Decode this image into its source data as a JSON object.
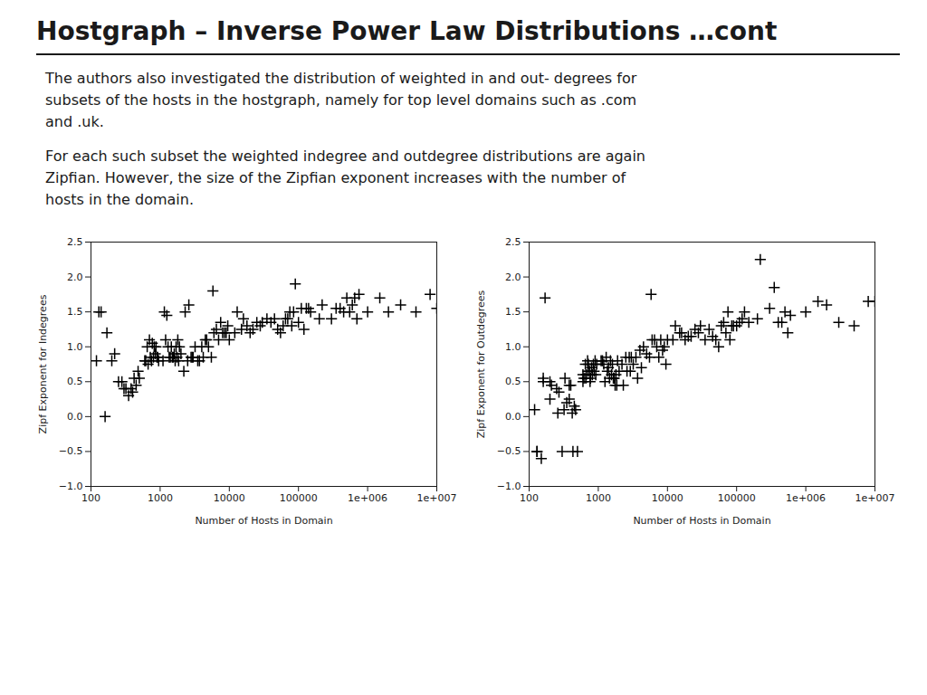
{
  "title": "Hostgraph – Inverse Power Law Distributions …cont",
  "annotations": [
    "The authors also investigated the distribution of weighted in and out- degrees for\nsubsets of the hosts in the hostgraph, namely for top level domains such as .com\nand .uk.",
    "For each such subset the weighted indegree and outdegree distributions are again\nZipfian. However, the size of the Zipfian exponent increases with the number of\nhosts in the domain."
  ],
  "chart_data": [
    {
      "type": "scatter",
      "xlabel": "Number of Hosts in Domain",
      "ylabel": "Zipf Exponent for Indegrees",
      "log": "x",
      "xlim": [
        100,
        10000000
      ],
      "ylim": [
        -1,
        2.5
      ],
      "xticks": [
        100,
        1000,
        10000,
        100000,
        {
          "value": 1000000,
          "label": "1e+006"
        },
        {
          "value": 10000000,
          "label": "1e+007"
        }
      ],
      "yticks": [
        {
          "value": -1,
          "label": "−1.0"
        },
        {
          "value": -0.5,
          "label": "−0.5"
        },
        {
          "value": 0,
          "label": "0.0"
        },
        0.5,
        {
          "value": 1,
          "label": "1.0"
        },
        1.5,
        {
          "value": 2,
          "label": "2.0"
        },
        2.5
      ],
      "grid": false,
      "marker": "plus",
      "color": "black",
      "x": [
        120,
        140,
        160,
        200,
        250,
        300,
        350,
        400,
        450,
        500,
        130,
        170,
        220,
        280,
        320,
        380,
        420,
        480,
        600,
        650,
        700,
        750,
        800,
        850,
        900,
        950,
        620,
        670,
        720,
        770,
        820,
        870,
        920,
        1100,
        1200,
        1300,
        1400,
        1500,
        1600,
        1700,
        1800,
        1900,
        2000,
        1150,
        1250,
        1350,
        1450,
        1550,
        1650,
        1750,
        1850,
        2200,
        2500,
        2800,
        3000,
        3500,
        4000,
        4500,
        5000,
        2300,
        2600,
        2900,
        3200,
        3700,
        4200,
        4700,
        5500,
        6000,
        7000,
        8000,
        9000,
        10000,
        5800,
        6500,
        7500,
        8500,
        9500,
        12000,
        15000,
        18000,
        22000,
        28000,
        35000,
        45000,
        55000,
        13000,
        16000,
        20000,
        25000,
        30000,
        40000,
        50000,
        60000,
        70000,
        80000,
        90000,
        100000,
        120000,
        150000,
        65000,
        75000,
        85000,
        110000,
        130000,
        140000,
        200000,
        300000,
        400000,
        500000,
        600000,
        700000,
        220000,
        350000,
        450000,
        550000,
        650000,
        750000,
        1000000,
        1500000,
        2000000,
        3000000,
        5000000,
        8000000,
        10000000
      ],
      "values": [
        0.8,
        1.5,
        0.0,
        0.8,
        0.5,
        0.4,
        0.3,
        0.35,
        0.45,
        0.55,
        1.5,
        1.2,
        0.9,
        0.5,
        0.4,
        0.4,
        0.55,
        0.65,
        0.8,
        1.0,
        1.1,
        0.8,
        0.85,
        0.9,
        0.85,
        0.8,
        0.8,
        0.75,
        0.85,
        1.05,
        1.0,
        1.0,
        0.85,
        0.8,
        1.1,
        1.0,
        0.85,
        0.85,
        0.9,
        1.0,
        1.1,
        1.0,
        0.9,
        1.5,
        1.45,
        0.85,
        1.0,
        0.85,
        0.8,
        0.85,
        0.8,
        0.65,
        0.8,
        0.85,
        0.85,
        0.8,
        1.0,
        1.1,
        1.0,
        1.5,
        1.6,
        0.85,
        1.0,
        0.8,
        0.85,
        1.1,
        0.85,
        1.2,
        1.1,
        1.2,
        1.2,
        1.1,
        1.8,
        1.25,
        1.35,
        1.2,
        1.3,
        1.2,
        1.25,
        1.3,
        1.25,
        1.3,
        1.4,
        1.4,
        1.2,
        1.5,
        1.4,
        1.2,
        1.35,
        1.35,
        1.35,
        1.25,
        1.3,
        1.4,
        1.3,
        1.9,
        1.35,
        1.25,
        1.5,
        1.4,
        1.5,
        1.5,
        1.55,
        1.55,
        1.55,
        1.4,
        1.4,
        1.55,
        1.7,
        1.6,
        1.4,
        1.6,
        1.55,
        1.5,
        1.5,
        1.7,
        1.75,
        1.5,
        1.7,
        1.5,
        1.6,
        1.5,
        1.75,
        1.55
      ]
    },
    {
      "type": "scatter",
      "xlabel": "Number of Hosts in Domain",
      "ylabel": "Zipf Exponent for Outdegrees",
      "log": "x",
      "xlim": [
        100,
        10000000
      ],
      "ylim": [
        -1,
        2.5
      ],
      "xticks": [
        100,
        1000,
        10000,
        100000,
        {
          "value": 1000000,
          "label": "1e+006"
        },
        {
          "value": 10000000,
          "label": "1e+007"
        }
      ],
      "yticks": [
        {
          "value": -1,
          "label": "−1.0"
        },
        {
          "value": -0.5,
          "label": "−0.5"
        },
        {
          "value": 0,
          "label": "0.0"
        },
        0.5,
        {
          "value": 1,
          "label": "1.0"
        },
        1.5,
        {
          "value": 2,
          "label": "2.0"
        },
        2.5
      ],
      "grid": false,
      "marker": "plus",
      "color": "black",
      "x": [
        120,
        150,
        170,
        200,
        250,
        300,
        350,
        400,
        450,
        500,
        130,
        160,
        210,
        270,
        330,
        380,
        430,
        470,
        130,
        160,
        200,
        260,
        320,
        380,
        420,
        600,
        650,
        700,
        750,
        800,
        850,
        900,
        950,
        620,
        670,
        720,
        770,
        820,
        870,
        920,
        600,
        660,
        710,
        760,
        1100,
        1200,
        1300,
        1400,
        1500,
        1600,
        1700,
        1800,
        1900,
        2000,
        1150,
        1250,
        1350,
        1450,
        1550,
        1650,
        1750,
        1850,
        2200,
        2500,
        2800,
        3000,
        3500,
        4000,
        4500,
        5000,
        2300,
        2600,
        2900,
        3200,
        3700,
        4200,
        5500,
        6000,
        7000,
        8000,
        9000,
        10000,
        5800,
        6500,
        7500,
        8500,
        9500,
        12000,
        15000,
        18000,
        22000,
        28000,
        35000,
        45000,
        55000,
        13000,
        16000,
        20000,
        25000,
        30000,
        40000,
        50000,
        60000,
        70000,
        80000,
        90000,
        100000,
        120000,
        150000,
        65000,
        75000,
        85000,
        110000,
        130000,
        200000,
        300000,
        400000,
        500000,
        600000,
        220000,
        350000,
        450000,
        550000,
        1000000,
        1500000,
        2000000,
        3000000,
        5000000,
        8000000,
        10000000
      ],
      "values": [
        0.1,
        -0.6,
        1.7,
        0.5,
        0.4,
        -0.5,
        0.2,
        0.45,
        0.15,
        -0.5,
        -0.5,
        0.55,
        0.45,
        0.35,
        0.55,
        0.45,
        -0.5,
        0.1,
        -0.5,
        0.5,
        0.25,
        0.05,
        0.1,
        0.25,
        0.05,
        0.5,
        0.75,
        0.8,
        0.65,
        0.7,
        0.75,
        0.8,
        0.75,
        0.55,
        0.6,
        0.75,
        0.55,
        0.6,
        0.65,
        0.6,
        0.6,
        0.55,
        0.65,
        0.5,
        0.8,
        0.75,
        0.85,
        0.7,
        0.8,
        0.75,
        0.55,
        0.6,
        0.8,
        0.65,
        0.8,
        0.5,
        0.65,
        0.55,
        0.6,
        0.55,
        0.45,
        0.45,
        0.75,
        0.85,
        0.85,
        0.85,
        0.85,
        0.95,
        1.0,
        0.9,
        0.45,
        0.65,
        0.65,
        0.75,
        0.55,
        0.7,
        0.85,
        1.1,
        1.0,
        1.1,
        1.0,
        1.1,
        1.75,
        1.1,
        0.85,
        0.95,
        0.75,
        1.1,
        1.2,
        1.1,
        1.15,
        1.2,
        1.1,
        1.15,
        1.0,
        1.3,
        1.2,
        1.15,
        1.25,
        1.3,
        1.25,
        1.1,
        1.3,
        1.2,
        1.1,
        1.3,
        1.3,
        1.4,
        1.35,
        1.35,
        1.5,
        1.3,
        1.35,
        1.5,
        1.4,
        1.55,
        1.35,
        1.5,
        1.45,
        2.25,
        1.85,
        1.35,
        1.2,
        1.5,
        1.65,
        1.6,
        1.35,
        1.3,
        1.65,
        1.65
      ]
    }
  ]
}
